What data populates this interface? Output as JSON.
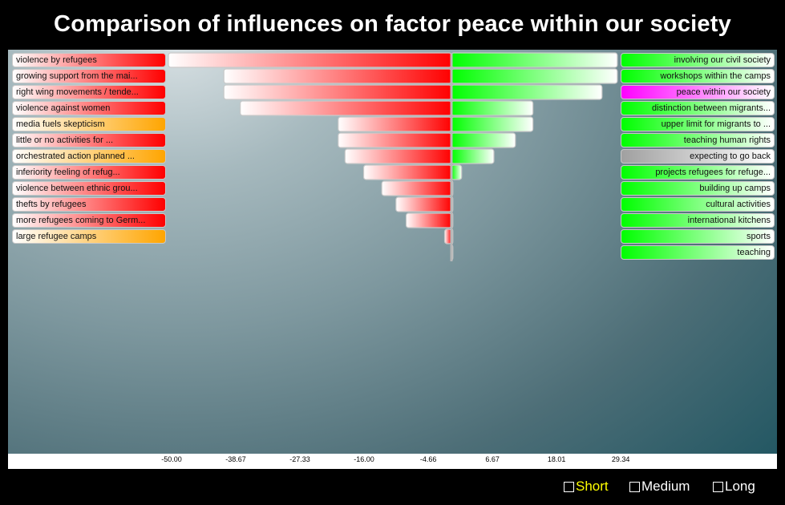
{
  "chart_data": {
    "type": "bar",
    "title": "Comparison of influences on factor peace within our society",
    "x_ticks": [
      "-50.00",
      "-38.67",
      "-27.33",
      "-16.00",
      "-4.66",
      "6.67",
      "18.01",
      "29.34"
    ],
    "xlim": [
      -50,
      29.34
    ],
    "negative_series": [
      {
        "label": "violence by refugees",
        "value": -50.0,
        "kind": "red"
      },
      {
        "label": "growing support from the mai...",
        "value": -40.2,
        "kind": "red"
      },
      {
        "label": "right wing movements / tende...",
        "value": -40.2,
        "kind": "red"
      },
      {
        "label": "violence against women",
        "value": -37.3,
        "kind": "red"
      },
      {
        "label": "media fuels skepticism",
        "value": -20.0,
        "kind": "orange"
      },
      {
        "label": "little or no activities for ...",
        "value": -20.0,
        "kind": "red"
      },
      {
        "label": "orchestrated action planned ...",
        "value": -18.8,
        "kind": "orange"
      },
      {
        "label": "inferiority feeling of refug...",
        "value": -15.5,
        "kind": "red"
      },
      {
        "label": "violence between ethnic grou...",
        "value": -12.3,
        "kind": "red"
      },
      {
        "label": "thefts by refugees",
        "value": -9.8,
        "kind": "red"
      },
      {
        "label": "more refugees coming to Germ...",
        "value": -8.0,
        "kind": "red"
      },
      {
        "label": "large refugee camps",
        "value": -1.2,
        "kind": "orange"
      }
    ],
    "positive_series": [
      {
        "label": "involving our civil society",
        "value": 29.3,
        "kind": "green"
      },
      {
        "label": "workshops within the camps",
        "value": 29.3,
        "kind": "green"
      },
      {
        "label": "peace within our society",
        "value": 26.6,
        "kind": "magenta"
      },
      {
        "label": "distinction between migrants...",
        "value": 14.4,
        "kind": "green"
      },
      {
        "label": "upper limit for migrants to ...",
        "value": 14.4,
        "kind": "green"
      },
      {
        "label": "teaching human rights",
        "value": 11.3,
        "kind": "green"
      },
      {
        "label": "expecting to go back",
        "value": 7.5,
        "kind": "grey"
      },
      {
        "label": "projects refugees for refuge...",
        "value": 1.8,
        "kind": "green"
      },
      {
        "label": "building up camps",
        "value": 0.25,
        "kind": "green"
      },
      {
        "label": "cultural activities",
        "value": 0.25,
        "kind": "green"
      },
      {
        "label": "international kitchens",
        "value": 0.25,
        "kind": "green"
      },
      {
        "label": "sports",
        "value": 0.25,
        "kind": "green"
      },
      {
        "label": "teaching",
        "value": 0.25,
        "kind": "green"
      }
    ]
  },
  "legend": {
    "items": [
      {
        "label": "Short",
        "selected": true
      },
      {
        "label": "Medium",
        "selected": false
      },
      {
        "label": "Long",
        "selected": false
      }
    ]
  },
  "colors": {
    "negative": "#ff0000",
    "orange": "#ffa500",
    "positive": "#00ff00",
    "magenta": "#ff00ff",
    "grey": "#a0a0a0",
    "selected_legend": "#ffff00",
    "legend": "#ffffff"
  }
}
